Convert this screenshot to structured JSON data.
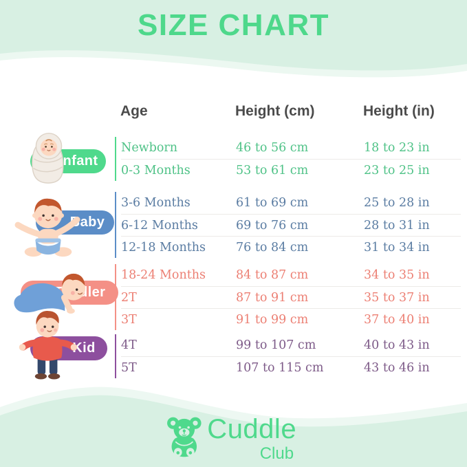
{
  "title": "SIZE CHART",
  "chart_data": {
    "type": "table",
    "title": "SIZE CHART",
    "columns": [
      "Age",
      "Height (cm)",
      "Height (in)"
    ],
    "groups": [
      {
        "label": "Infant",
        "pill_color": "#4fd98c",
        "text_color": "#4fc287",
        "rows": [
          [
            "Newborn",
            "46 to 56 cm",
            "18 to 23 in"
          ],
          [
            "0-3 Months",
            "53 to 61 cm",
            "23 to 25 in"
          ]
        ]
      },
      {
        "label": "Baby",
        "pill_color": "#5b8dc7",
        "text_color": "#5a7ca2",
        "rows": [
          [
            "3-6 Months",
            "61 to 69 cm",
            "25 to 28 in"
          ],
          [
            "6-12 Months",
            "69 to 76 cm",
            "28 to 31 in"
          ],
          [
            "12-18 Months",
            "76 to 84 cm",
            "31 to 34 in"
          ]
        ]
      },
      {
        "label": "Toddler",
        "pill_color": "#f49086",
        "text_color": "#ec7f73",
        "rows": [
          [
            "18-24 Months",
            "84 to 87 cm",
            "34 to 35 in"
          ],
          [
            "2T",
            "87 to 91 cm",
            "35 to 37 in"
          ],
          [
            "3T",
            "91 to 99 cm",
            "37 to 40 in"
          ]
        ]
      },
      {
        "label": "Kid",
        "pill_color": "#8d4f9e",
        "text_color": "#7d5a88",
        "rows": [
          [
            "4T",
            "99 to 107 cm",
            "40 to 43 in"
          ],
          [
            "5T",
            "107 to 115 cm",
            "43 to 46 in"
          ]
        ]
      }
    ]
  },
  "brand": {
    "name": "Cuddle",
    "sub": "Club",
    "color": "#4fd98c",
    "icon": "teddy-bear-icon"
  },
  "colors": {
    "background": "#d8f0e3",
    "card": "#ffffff",
    "title": "#4ed88b",
    "header_text": "#4b4b4b",
    "divider": "#eceae8"
  },
  "illustrations": [
    "swaddled-infant-illustration",
    "sitting-baby-illustration",
    "crawling-toddler-illustration",
    "standing-kid-illustration"
  ]
}
